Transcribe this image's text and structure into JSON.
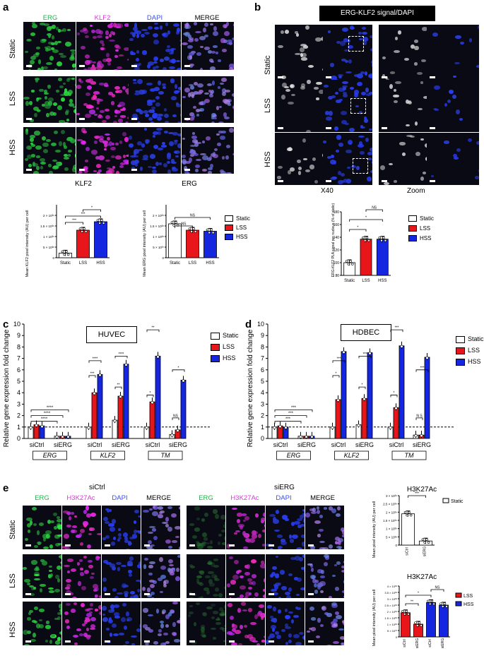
{
  "colors": {
    "green": "#22b24c",
    "magenta": "#d63ad6",
    "blue": "#3a4ef0",
    "white": "#ffffff",
    "red": "#e8161b",
    "bar_blue": "#1526e0",
    "black": "#000000"
  },
  "panels": {
    "a": "a",
    "b": "b",
    "c": "c",
    "d": "d",
    "e": "e"
  },
  "a": {
    "headers": [
      "ERG",
      "KLF2",
      "DAPI",
      "MERGE"
    ],
    "rows": [
      "Static",
      "LSS",
      "HSS"
    ],
    "chart_klf2": {
      "type": "bar",
      "title": "KLF2",
      "ylabel": "Mean KLF2 pixel intensity (AU) per cell",
      "categories": [
        "Static",
        "LSS",
        "HSS"
      ],
      "values": [
        2.2e+38,
        1.3e+39,
        1.7e+39
      ],
      "ylim": [
        0,
        2.5e+39
      ],
      "yticks": [
        "0",
        "5 × 10³⁸",
        "1 × 10³⁹",
        "1.5 × 10³⁹",
        "2 × 10³⁹"
      ],
      "sig": [
        "***",
        "***",
        "*"
      ]
    },
    "chart_erg": {
      "type": "bar",
      "title": "ERG",
      "ylabel": "Mean ERG pixel intensity (AU) per cell",
      "categories": [
        "Static",
        "LSS",
        "HSS"
      ],
      "values": [
        1.6e+38,
        1.3e+38,
        1.25e+38
      ],
      "ylim": [
        0,
        2.5e+38
      ],
      "yticks": [
        "0",
        "5 × 10³⁷",
        "1 × 10³⁸",
        "1.5 × 10³⁸",
        "2 × 10³⁸"
      ],
      "sig": [
        "NS",
        "NS"
      ]
    },
    "legend": [
      "Static",
      "LSS",
      "HSS"
    ]
  },
  "b": {
    "title": "ERG-KLF2 signal/DAPI",
    "rows": [
      "Static",
      "LSS",
      "HSS"
    ],
    "col_labels": [
      "X40",
      "Zoom"
    ],
    "chart": {
      "type": "bar",
      "ylabel": "ERG-KLF2 PLA signal per nucleus (% of static)",
      "categories": [
        "Static",
        "LSS",
        "HSS"
      ],
      "values": [
        100,
        137,
        137
      ],
      "ylim": [
        80,
        180
      ],
      "yticks": [
        "80",
        "100",
        "120",
        "140",
        "160",
        "180"
      ],
      "sig": [
        "*",
        "*",
        "NS"
      ]
    },
    "legend": [
      "Static",
      "LSS",
      "HSS"
    ]
  },
  "c": {
    "cell": "HUVEC",
    "ylabel": "Relative gene expression fold change",
    "yticks": [
      "0",
      "1",
      "2",
      "3",
      "4",
      "5",
      "6",
      "7",
      "8",
      "9",
      "10"
    ],
    "groups": [
      "siCtrl",
      "siERG",
      "siCtrl",
      "siERG",
      "siCtrl",
      "siERG"
    ],
    "genes": [
      "ERG",
      "KLF2",
      "TM"
    ],
    "legend": [
      "Static",
      "LSS",
      "HSS"
    ],
    "chart_data": {
      "type": "bar",
      "series": [
        {
          "name": "Static",
          "values": [
            1,
            0.2,
            1,
            1.6,
            1,
            0.35
          ]
        },
        {
          "name": "LSS",
          "values": [
            1.2,
            0.2,
            4,
            3.7,
            3.2,
            0.75
          ]
        },
        {
          "name": "HSS",
          "values": [
            1.1,
            0.2,
            5.6,
            6.5,
            7.2,
            5.1
          ]
        }
      ],
      "ylim": [
        0,
        10
      ]
    },
    "sig": [
      "****",
      "****",
      "****",
      "****",
      "***",
      "****",
      "**",
      "****",
      "*",
      "**",
      "NS",
      "*",
      "**"
    ]
  },
  "d": {
    "cell": "HDBEC",
    "ylabel": "Relative gene expression fold change",
    "yticks": [
      "0",
      "1",
      "2",
      "3",
      "4",
      "5",
      "6",
      "7",
      "8",
      "9",
      "10"
    ],
    "groups": [
      "siCtrl",
      "siERG",
      "siCtrl",
      "siERG",
      "siCtrl",
      "siERG"
    ],
    "genes": [
      "ERG",
      "KLF2",
      "TM"
    ],
    "legend": [
      "Static",
      "LSS",
      "HSS"
    ],
    "chart_data": {
      "type": "bar",
      "series": [
        {
          "name": "Static",
          "values": [
            1,
            0.2,
            1,
            1.2,
            1,
            0.3
          ]
        },
        {
          "name": "LSS",
          "values": [
            1.1,
            0.2,
            3.4,
            3.5,
            2.7,
            0.3
          ]
        },
        {
          "name": "HSS",
          "values": [
            1.0,
            0.2,
            7.6,
            7.5,
            8.1,
            7.1
          ]
        }
      ],
      "ylim": [
        0,
        10
      ]
    },
    "sig": [
      "***",
      "***",
      "***",
      "***",
      "*",
      "***",
      "*",
      "***",
      "*",
      "***",
      "N S",
      "***"
    ]
  },
  "e": {
    "sictrl": "siCtrl",
    "sierg": "siERG",
    "headers": [
      "ERG",
      "H3K27Ac",
      "DAPI",
      "MERGE"
    ],
    "rows": [
      "Static",
      "LSS",
      "HSS"
    ],
    "chart_top": {
      "type": "bar",
      "title": "H3K27Ac",
      "ylabel": "Mean pixel intensity (AU) per cell",
      "categories": [
        "siCtrl",
        "siERG"
      ],
      "values": [
        1.9e+39,
        2.5e+38
      ],
      "ylim": [
        0,
        3e+39
      ],
      "yticks": [
        "0",
        "5 × 10³⁸",
        "1 × 10³⁹",
        "1.5 × 10³⁹",
        "2 × 10³⁹",
        "2.5 × 10³⁹",
        "3 × 10³⁹"
      ],
      "sig": [
        "***"
      ],
      "legend": [
        "Static"
      ]
    },
    "chart_bottom": {
      "type": "bar",
      "title": "H3K27Ac",
      "ylabel": "Mean pixel intensity (AU) per cell",
      "categories": [
        "siCtrl",
        "siERG",
        "siCtrl",
        "siERG"
      ],
      "values": [
        1.9e+38,
        1e+38,
        2.7e+38,
        2.5e+38
      ],
      "ylim": [
        0,
        4e+38
      ],
      "yticks": [
        "0",
        "5 × 10³⁷",
        "1 × 10³⁸",
        "1.5 × 10³⁸",
        "2 × 10³⁸",
        "2.5 × 10³⁸",
        "3 × 10³⁸",
        "3.5 × 10³⁸",
        "4 × 10³⁸"
      ],
      "sig": [
        "**",
        "*",
        "NS"
      ],
      "legend": [
        "LSS",
        "HSS"
      ]
    }
  }
}
